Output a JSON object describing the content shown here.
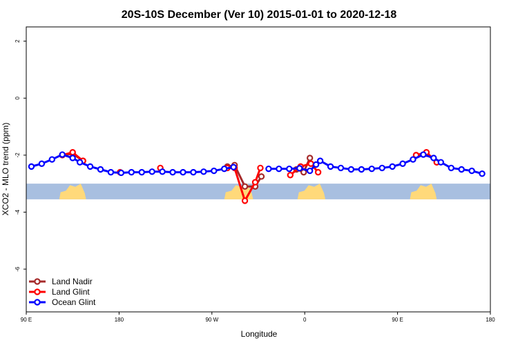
{
  "chart_data": {
    "type": "line",
    "title": "20S-10S December (Ver 10)   2015-01-01 to 2020-12-18",
    "xlabel": "Longitude",
    "ylabel": "XCO2 - MLO trend (ppm)",
    "xlim": [
      90,
      540
    ],
    "ylim": [
      -7.5,
      2.5
    ],
    "x_ticks": [
      {
        "value": 90,
        "label": "90 E"
      },
      {
        "value": 180,
        "label": "180"
      },
      {
        "value": 270,
        "label": "90 W"
      },
      {
        "value": 360,
        "label": "0"
      },
      {
        "value": 450,
        "label": "90 E"
      },
      {
        "value": 540,
        "label": "180"
      }
    ],
    "y_ticks": [
      {
        "value": 2,
        "label": "2"
      },
      {
        "value": 0,
        "label": "0"
      },
      {
        "value": -2,
        "label": "-2"
      },
      {
        "value": -4,
        "label": "-4"
      },
      {
        "value": -6,
        "label": "-6"
      }
    ],
    "legend_position": "bottom-left",
    "map_strip": {
      "ocean_color": "#a8bfe0",
      "land_color": "#ffd97a",
      "y_range": [
        -3.55,
        -3.0
      ],
      "land_spans": [
        [
          122,
          148
        ],
        [
          282,
          310
        ],
        [
          353,
          380
        ],
        [
          462,
          488
        ]
      ]
    },
    "series": [
      {
        "name": "Land Nadir",
        "color": "#a52a2a",
        "segments": [
          [
            [
              125,
              -2.0
            ],
            [
              135,
              -1.95
            ],
            [
              145,
              -2.2
            ]
          ],
          [
            [
              285,
              -2.4
            ],
            [
              292,
              -2.35
            ],
            [
              302,
              -3.1
            ],
            [
              312,
              -3.1
            ],
            [
              318,
              -2.75
            ]
          ],
          [
            [
              352,
              -2.5
            ],
            [
              359,
              -2.6
            ],
            [
              365,
              -2.1
            ]
          ],
          [
            [
              468,
              -2.0
            ],
            [
              478,
              -1.95
            ],
            [
              488,
              -2.25
            ]
          ]
        ]
      },
      {
        "name": "Land Glint",
        "color": "#ff0000",
        "segments": [
          [
            [
              125,
              -2.0
            ],
            [
              135,
              -1.9
            ],
            [
              145,
              -2.2
            ]
          ],
          [
            [
              181,
              -2.6
            ]
          ],
          [
            [
              220,
              -2.45
            ]
          ],
          [
            [
              285,
              -2.45
            ],
            [
              292,
              -2.45
            ],
            [
              302,
              -3.6
            ],
            [
              312,
              -2.95
            ],
            [
              317,
              -2.45
            ]
          ],
          [
            [
              346,
              -2.7
            ],
            [
              356,
              -2.4
            ],
            [
              366,
              -2.3
            ],
            [
              373,
              -2.6
            ]
          ],
          [
            [
              468,
              -2.0
            ],
            [
              478,
              -1.9
            ],
            [
              488,
              -2.25
            ]
          ]
        ]
      },
      {
        "name": "Ocean Glint",
        "color": "#0000ff",
        "segments": [
          [
            [
              95,
              -2.4
            ],
            [
              105,
              -2.3
            ],
            [
              115,
              -2.15
            ],
            [
              125,
              -1.98
            ],
            [
              135,
              -2.1
            ],
            [
              142,
              -2.25
            ],
            [
              152,
              -2.4
            ],
            [
              162,
              -2.5
            ],
            [
              172,
              -2.6
            ],
            [
              182,
              -2.62
            ],
            [
              192,
              -2.6
            ],
            [
              202,
              -2.6
            ],
            [
              212,
              -2.58
            ],
            [
              222,
              -2.58
            ],
            [
              232,
              -2.6
            ],
            [
              242,
              -2.6
            ],
            [
              252,
              -2.6
            ],
            [
              262,
              -2.58
            ],
            [
              272,
              -2.55
            ],
            [
              282,
              -2.48
            ],
            [
              291,
              -2.42
            ]
          ],
          [
            [
              325,
              -2.48
            ],
            [
              335,
              -2.48
            ],
            [
              345,
              -2.48
            ],
            [
              355,
              -2.46
            ],
            [
              365,
              -2.55
            ],
            [
              371,
              -2.33
            ]
          ],
          [
            [
              375,
              -2.2
            ],
            [
              385,
              -2.4
            ],
            [
              395,
              -2.45
            ],
            [
              405,
              -2.5
            ],
            [
              415,
              -2.5
            ],
            [
              425,
              -2.48
            ],
            [
              435,
              -2.45
            ],
            [
              445,
              -2.4
            ],
            [
              455,
              -2.3
            ],
            [
              465,
              -2.15
            ],
            [
              475,
              -1.98
            ],
            [
              485,
              -2.1
            ],
            [
              492,
              -2.25
            ],
            [
              502,
              -2.45
            ],
            [
              512,
              -2.5
            ],
            [
              522,
              -2.55
            ],
            [
              532,
              -2.65
            ]
          ]
        ]
      }
    ]
  }
}
